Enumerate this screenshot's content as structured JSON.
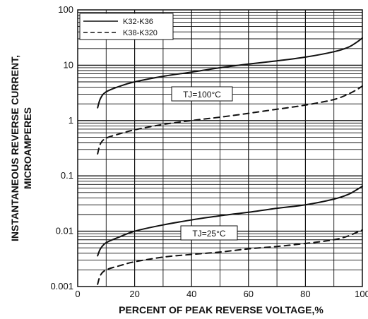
{
  "chart_data": {
    "type": "line",
    "xlabel": "PERCENT OF PEAK REVERSE VOLTAGE,%",
    "ylabel_line1": "INSTANTANEOUS REVERSE CURRENT,",
    "ylabel_line2": "MICROAMPERES",
    "x_ticks": [
      "0",
      "20",
      "40",
      "60",
      "80",
      "100"
    ],
    "y_ticks": [
      "100",
      "10",
      "1",
      "0.1",
      "0.01",
      "0.001"
    ],
    "xlim": [
      0,
      100
    ],
    "ylim": [
      0.001,
      100
    ],
    "y_scale": "log",
    "grid": true,
    "legend_position": "top-left",
    "legend": [
      {
        "label": "K32-K36",
        "style": "solid"
      },
      {
        "label": "K38-K320",
        "style": "dashed"
      }
    ],
    "annotations": [
      "TJ=100°C",
      "TJ=25°C"
    ],
    "series": [
      {
        "name": "K32-K36",
        "condition": "TJ=100°C",
        "style": "solid",
        "x": [
          7,
          8,
          10,
          15,
          20,
          30,
          40,
          50,
          60,
          70,
          80,
          90,
          95,
          98,
          100
        ],
        "y": [
          1.7,
          2.5,
          3.3,
          4.2,
          5.0,
          6.3,
          7.5,
          9.0,
          10.5,
          12.0,
          14.0,
          17.5,
          21.0,
          26.0,
          31.0
        ]
      },
      {
        "name": "K38-K320",
        "condition": "TJ=100°C",
        "style": "dashed",
        "x": [
          7,
          8,
          10,
          15,
          20,
          30,
          40,
          50,
          60,
          70,
          80,
          90,
          95,
          98,
          100
        ],
        "y": [
          0.25,
          0.38,
          0.48,
          0.58,
          0.68,
          0.85,
          1.0,
          1.15,
          1.35,
          1.6,
          1.9,
          2.4,
          3.0,
          3.6,
          4.2
        ]
      },
      {
        "name": "K32-K36",
        "condition": "TJ=25°C",
        "style": "solid",
        "x": [
          7,
          8,
          10,
          15,
          20,
          30,
          40,
          50,
          60,
          70,
          80,
          90,
          95,
          98,
          100
        ],
        "y": [
          0.0036,
          0.0048,
          0.0062,
          0.008,
          0.01,
          0.013,
          0.016,
          0.019,
          0.022,
          0.026,
          0.03,
          0.038,
          0.046,
          0.056,
          0.065
        ]
      },
      {
        "name": "K38-K320",
        "condition": "TJ=25°C",
        "style": "dashed",
        "x": [
          7,
          8,
          10,
          15,
          20,
          30,
          40,
          50,
          60,
          70,
          80,
          90,
          95,
          98,
          100
        ],
        "y": [
          0.0011,
          0.0016,
          0.002,
          0.0024,
          0.0028,
          0.0034,
          0.0038,
          0.0042,
          0.0048,
          0.0053,
          0.006,
          0.007,
          0.0082,
          0.0095,
          0.0105
        ]
      }
    ]
  }
}
